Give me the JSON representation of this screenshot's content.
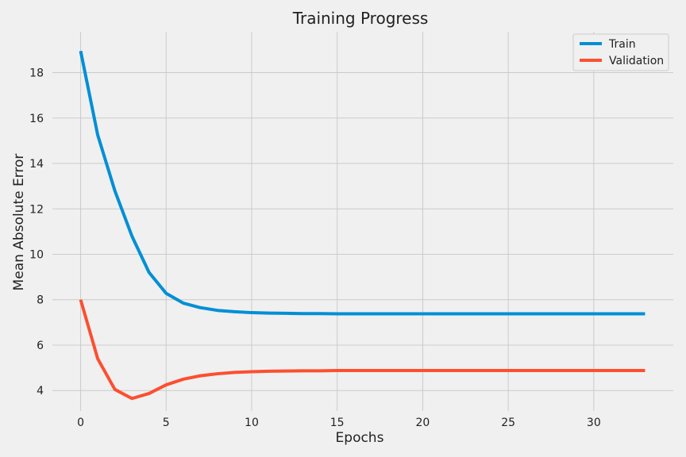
{
  "chart_data": {
    "type": "line",
    "title": "Training Progress",
    "xlabel": "Epochs",
    "ylabel": "Mean Absolute Error",
    "xlim": [
      -1.65,
      34.65
    ],
    "ylim": [
      3.1,
      19.8
    ],
    "xticks": [
      0,
      5,
      10,
      15,
      20,
      25,
      30
    ],
    "yticks": [
      4,
      6,
      8,
      10,
      12,
      14,
      16,
      18
    ],
    "grid": true,
    "legend_position": "top-right",
    "x": [
      0,
      1,
      2,
      3,
      4,
      5,
      6,
      7,
      8,
      9,
      10,
      11,
      12,
      13,
      14,
      15,
      16,
      17,
      18,
      19,
      20,
      21,
      22,
      23,
      24,
      25,
      26,
      27,
      28,
      29,
      30,
      31,
      32,
      33
    ],
    "series": [
      {
        "name": "Train",
        "color": "#008fd5",
        "values": [
          18.95,
          15.25,
          12.8,
          10.8,
          9.2,
          8.28,
          7.85,
          7.65,
          7.53,
          7.47,
          7.43,
          7.41,
          7.4,
          7.39,
          7.39,
          7.38,
          7.38,
          7.38,
          7.38,
          7.38,
          7.38,
          7.38,
          7.38,
          7.38,
          7.38,
          7.38,
          7.38,
          7.38,
          7.38,
          7.38,
          7.38,
          7.38,
          7.38,
          7.38
        ]
      },
      {
        "name": "Validation",
        "color": "#fc4f30",
        "values": [
          8.0,
          5.4,
          4.05,
          3.65,
          3.87,
          4.25,
          4.5,
          4.65,
          4.74,
          4.8,
          4.83,
          4.85,
          4.86,
          4.87,
          4.87,
          4.88,
          4.88,
          4.88,
          4.88,
          4.88,
          4.88,
          4.88,
          4.88,
          4.88,
          4.88,
          4.88,
          4.88,
          4.88,
          4.88,
          4.88,
          4.88,
          4.88,
          4.88,
          4.88
        ]
      }
    ]
  }
}
